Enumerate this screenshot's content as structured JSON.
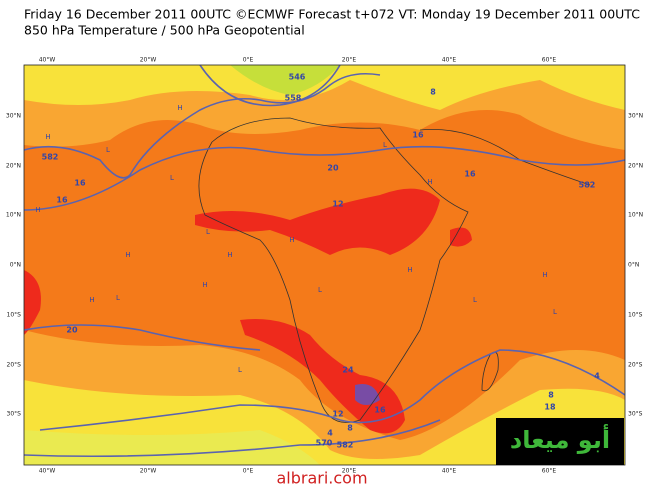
{
  "header": {
    "title": "Friday 16 December 2011 00UTC ©ECMWF Forecast t+072 VT: Monday 19 December 2011 00UTC",
    "subtitle": "850 hPa Temperature / 500 hPa Geopotential"
  },
  "axes": {
    "lon_labels": [
      "40°W",
      "20°W",
      "0°E",
      "20°E",
      "40°E",
      "60°E"
    ],
    "lat_labels": [
      "30°N",
      "20°N",
      "10°N",
      "0°N",
      "10°S",
      "20°S",
      "30°S"
    ]
  },
  "contour_labels": [
    "546",
    "558",
    "582",
    "16",
    "16",
    "20",
    "12",
    "16",
    "582",
    "16",
    "20",
    "24",
    "16",
    "12",
    "8",
    "4",
    "570",
    "582",
    "8",
    "18",
    "4",
    "8"
  ],
  "pressure_centers": [
    "H",
    "H",
    "L",
    "H",
    "L",
    "H",
    "H",
    "L",
    "H",
    "L",
    "H",
    "L",
    "H",
    "L",
    "H",
    "L",
    "L",
    "H",
    "L",
    "H"
  ],
  "watermark": {
    "arabic": "أبو ميعاد",
    "site": "albrari.com"
  }
}
